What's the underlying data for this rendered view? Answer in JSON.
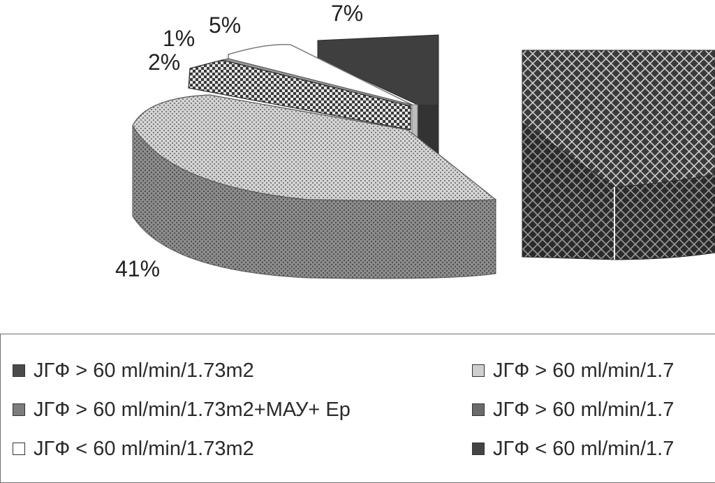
{
  "chart_data": {
    "type": "pie",
    "style": "3d-exploded",
    "slices": [
      {
        "label": "7%",
        "value": 7,
        "legend_ref": 5,
        "shade": "#3f3f3f"
      },
      {
        "label": "5%",
        "value": 5,
        "legend_ref": 4,
        "shade": "#ffffff"
      },
      {
        "label": "1%",
        "value": 1,
        "legend_ref": 3,
        "shade": "#9a9a9a"
      },
      {
        "label": "2%",
        "value": 2,
        "legend_ref": 1,
        "shade": "#5a5a5a"
      },
      {
        "label": "41%",
        "value": 41,
        "legend_ref": 2,
        "shade": "#c9c9c9"
      },
      {
        "label": "",
        "value": 44,
        "legend_ref": 0,
        "shade": "#3a3a3a"
      }
    ],
    "legend": {
      "position": "bottom",
      "items": [
        {
          "text": "ЈГФ > 60 ml/min/1.73m2",
          "swatch": "#4a4a4a"
        },
        {
          "text": "ЈГФ > 60 ml/min/1.73m2+МАУ+ Ер",
          "swatch": "#7d7d7d"
        },
        {
          "text": "ЈГФ < 60 ml/min/1.73m2",
          "swatch": "#ffffff"
        },
        {
          "text": "ЈГФ > 60 ml/min/1.7",
          "swatch": "#cfcfcf"
        },
        {
          "text": "ЈГФ > 60 ml/min/1.7",
          "swatch": "#6a6a6a"
        },
        {
          "text": "ЈГФ < 60 ml/min/1.7",
          "swatch": "#444444"
        }
      ]
    }
  }
}
